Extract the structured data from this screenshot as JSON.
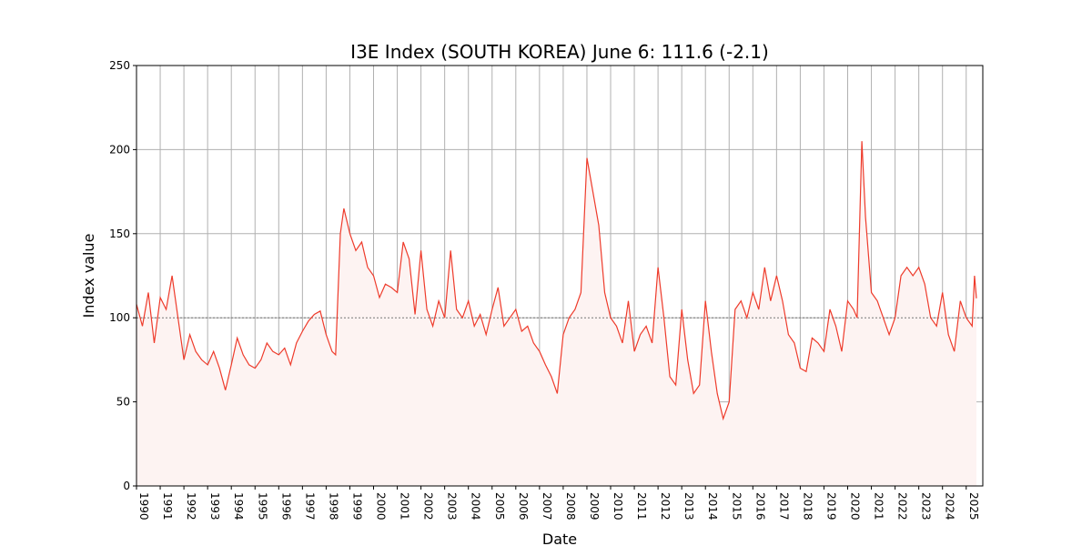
{
  "chart_data": {
    "type": "line",
    "title": "I3E Index (SOUTH KOREA) June 6: 111.6 (-2.1)",
    "xlabel": "Date",
    "ylabel": "Index value",
    "x": [
      1990.0,
      1990.25,
      1990.5,
      1990.75,
      1991.0,
      1991.25,
      1991.5,
      1991.75,
      1992.0,
      1992.25,
      1992.5,
      1992.75,
      1993.0,
      1993.25,
      1993.5,
      1993.75,
      1994.0,
      1994.25,
      1994.5,
      1994.75,
      1995.0,
      1995.25,
      1995.5,
      1995.75,
      1996.0,
      1996.25,
      1996.5,
      1996.75,
      1997.0,
      1997.25,
      1997.5,
      1997.75,
      1998.0,
      1998.25,
      1998.4,
      1998.6,
      1998.75,
      1999.0,
      1999.25,
      1999.5,
      1999.75,
      2000.0,
      2000.25,
      2000.5,
      2000.75,
      2001.0,
      2001.25,
      2001.5,
      2001.75,
      2002.0,
      2002.25,
      2002.5,
      2002.75,
      2003.0,
      2003.25,
      2003.5,
      2003.75,
      2004.0,
      2004.25,
      2004.5,
      2004.75,
      2005.0,
      2005.25,
      2005.5,
      2005.75,
      2006.0,
      2006.25,
      2006.5,
      2006.75,
      2007.0,
      2007.25,
      2007.5,
      2007.75,
      2008.0,
      2008.25,
      2008.5,
      2008.75,
      2009.0,
      2009.25,
      2009.5,
      2009.75,
      2010.0,
      2010.25,
      2010.5,
      2010.75,
      2011.0,
      2011.25,
      2011.5,
      2011.75,
      2012.0,
      2012.25,
      2012.5,
      2012.75,
      2013.0,
      2013.25,
      2013.5,
      2013.75,
      2014.0,
      2014.25,
      2014.5,
      2014.75,
      2015.0,
      2015.25,
      2015.5,
      2015.75,
      2016.0,
      2016.25,
      2016.5,
      2016.75,
      2017.0,
      2017.25,
      2017.5,
      2017.75,
      2018.0,
      2018.25,
      2018.5,
      2018.75,
      2019.0,
      2019.25,
      2019.5,
      2019.75,
      2020.0,
      2020.25,
      2020.4,
      2020.6,
      2020.75,
      2021.0,
      2021.25,
      2021.5,
      2021.75,
      2022.0,
      2022.25,
      2022.5,
      2022.75,
      2023.0,
      2023.25,
      2023.5,
      2023.75,
      2024.0,
      2024.25,
      2024.5,
      2024.75,
      2025.0,
      2025.25,
      2025.35,
      2025.43
    ],
    "series": [
      {
        "name": "I3E Index",
        "color": "#ee3b2b",
        "values": [
          108,
          95,
          115,
          85,
          112,
          105,
          125,
          100,
          75,
          90,
          80,
          75,
          72,
          80,
          70,
          57,
          72,
          88,
          78,
          72,
          70,
          75,
          85,
          80,
          78,
          82,
          72,
          85,
          92,
          98,
          102,
          104,
          90,
          80,
          78,
          150,
          165,
          150,
          140,
          145,
          130,
          125,
          112,
          120,
          118,
          115,
          145,
          135,
          102,
          140,
          105,
          95,
          110,
          100,
          140,
          105,
          100,
          110,
          95,
          102,
          90,
          105,
          118,
          95,
          100,
          105,
          92,
          95,
          85,
          80,
          72,
          65,
          55,
          90,
          100,
          105,
          115,
          195,
          175,
          155,
          115,
          100,
          95,
          85,
          110,
          80,
          90,
          95,
          85,
          130,
          100,
          65,
          60,
          105,
          75,
          55,
          60,
          110,
          80,
          55,
          40,
          50,
          105,
          110,
          100,
          115,
          105,
          130,
          110,
          125,
          110,
          90,
          85,
          70,
          68,
          88,
          85,
          80,
          105,
          95,
          80,
          110,
          105,
          100,
          205,
          160,
          115,
          110,
          100,
          90,
          100,
          125,
          130,
          125,
          130,
          120,
          100,
          95,
          115,
          90,
          80,
          110,
          100,
          95,
          125,
          111.6
        ]
      }
    ],
    "reference_line": 100,
    "xlim": [
      1990,
      2025.7
    ],
    "xticks": [
      1990,
      1991,
      1992,
      1993,
      1994,
      1995,
      1996,
      1997,
      1998,
      1999,
      2000,
      2001,
      2002,
      2003,
      2004,
      2005,
      2006,
      2007,
      2008,
      2009,
      2010,
      2011,
      2012,
      2013,
      2014,
      2015,
      2016,
      2017,
      2018,
      2019,
      2020,
      2021,
      2022,
      2023,
      2024,
      2025
    ],
    "ylim": [
      0,
      250
    ],
    "yticks": [
      0,
      50,
      100,
      150,
      200,
      250
    ],
    "grid": true,
    "fill": "#fdf3f2"
  }
}
